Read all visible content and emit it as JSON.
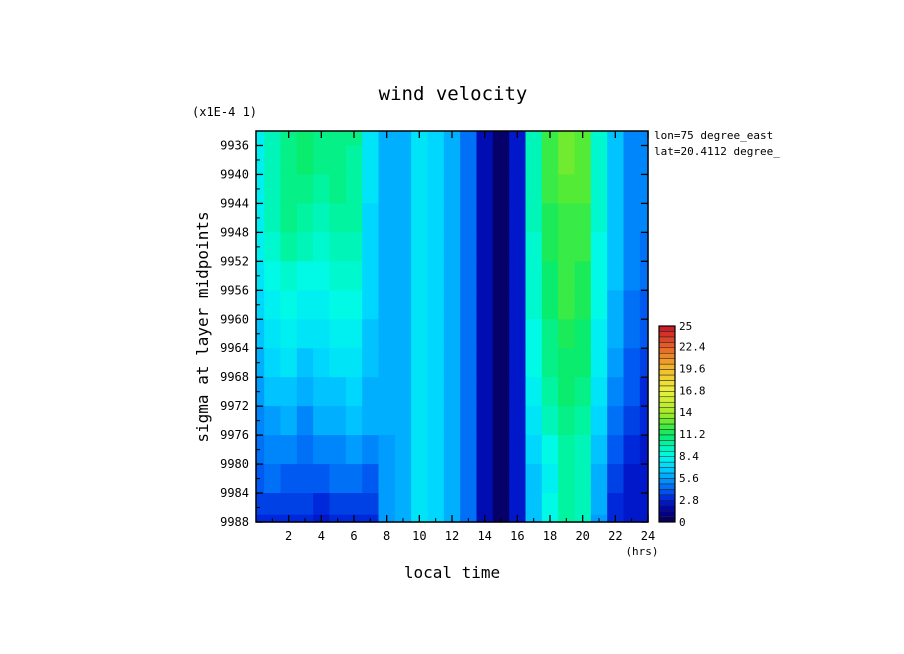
{
  "chart_data": {
    "type": "heatmap",
    "title": "wind velocity",
    "xlabel": "local time",
    "x_unit": "(hrs)",
    "ylabel": "sigma at layer midpoints",
    "y_multiplier": "(x1E-4 1)",
    "annotations": [
      "lon=75 degree_east",
      "lat=20.4112 degree_"
    ],
    "xlim": [
      0,
      24
    ],
    "ylim": [
      9934,
      9988
    ],
    "y_inverted": true,
    "x_ticks": [
      2,
      4,
      6,
      8,
      10,
      12,
      14,
      16,
      18,
      20,
      22,
      24
    ],
    "x_tick_labels": [
      "2",
      "4",
      "6",
      "8",
      "10",
      "12",
      "14",
      "16",
      "18",
      "20",
      "22",
      "24"
    ],
    "y_ticks": [
      9936,
      9940,
      9944,
      9948,
      9952,
      9956,
      9960,
      9964,
      9968,
      9972,
      9976,
      9980,
      9984,
      9988
    ],
    "y_tick_labels": [
      "9936",
      "9940",
      "9944",
      "9948",
      "9952",
      "9956",
      "9960",
      "9964",
      "9968",
      "9972",
      "9976",
      "9980",
      "9984",
      "9988"
    ],
    "colorbar": {
      "min": 0,
      "max": 25,
      "labels": [
        "25",
        "22.4",
        "19.6",
        "16.8",
        "14",
        "11.2",
        "8.4",
        "5.6",
        "2.8",
        "0"
      ],
      "label_values": [
        25,
        22.4,
        19.6,
        16.8,
        14,
        11.2,
        8.4,
        5.6,
        2.8,
        0
      ]
    },
    "grid_x": [
      0,
      1,
      2,
      3,
      4,
      5,
      6,
      7,
      8,
      9,
      10,
      11,
      12,
      13,
      14,
      15,
      16,
      17,
      18,
      19,
      20,
      21,
      22,
      23,
      24
    ],
    "grid_y": [
      9934,
      9938,
      9942,
      9946,
      9950,
      9954,
      9958,
      9962,
      9966,
      9970,
      9974,
      9978,
      9982,
      9986,
      9988
    ],
    "values": [
      [
        8.0,
        9.5,
        10.5,
        11.0,
        10.5,
        10.5,
        10.5,
        7.5,
        6.0,
        6.0,
        7.5,
        7.0,
        6.0,
        4.5,
        2.0,
        0.5,
        2.5,
        9.5,
        12.0,
        13.0,
        12.5,
        9.0,
        6.5,
        5.0,
        5.0
      ],
      [
        8.0,
        9.5,
        10.5,
        11.0,
        10.5,
        10.5,
        10.0,
        7.5,
        6.0,
        6.0,
        7.5,
        7.0,
        6.0,
        4.5,
        2.0,
        0.5,
        2.5,
        9.5,
        12.0,
        13.0,
        12.5,
        9.0,
        6.5,
        5.0,
        5.0
      ],
      [
        8.0,
        9.5,
        10.5,
        10.5,
        10.0,
        10.5,
        10.0,
        7.5,
        6.0,
        6.0,
        7.5,
        7.0,
        6.0,
        4.5,
        2.0,
        0.5,
        2.5,
        9.5,
        12.0,
        12.5,
        12.5,
        9.0,
        6.5,
        5.0,
        5.0
      ],
      [
        8.0,
        9.5,
        10.5,
        10.0,
        9.5,
        10.0,
        10.0,
        7.0,
        6.0,
        6.0,
        7.5,
        7.0,
        6.0,
        4.5,
        2.0,
        0.5,
        2.5,
        9.5,
        11.5,
        12.0,
        12.0,
        9.0,
        6.5,
        5.0,
        5.0
      ],
      [
        8.0,
        9.0,
        10.0,
        9.5,
        9.0,
        9.5,
        9.5,
        7.0,
        6.0,
        6.0,
        7.5,
        7.0,
        6.0,
        4.5,
        2.0,
        0.5,
        2.5,
        9.0,
        11.5,
        12.0,
        12.0,
        8.5,
        6.5,
        5.0,
        4.5
      ],
      [
        7.5,
        8.5,
        9.0,
        8.5,
        8.5,
        9.0,
        9.0,
        7.0,
        6.0,
        6.0,
        7.5,
        7.0,
        6.0,
        4.5,
        2.0,
        0.5,
        2.5,
        9.0,
        11.0,
        12.0,
        11.5,
        8.5,
        6.5,
        5.0,
        4.5
      ],
      [
        7.0,
        8.0,
        8.5,
        8.0,
        8.0,
        8.5,
        8.5,
        7.0,
        6.0,
        6.0,
        7.5,
        7.0,
        6.0,
        4.5,
        2.0,
        0.5,
        2.5,
        9.0,
        11.0,
        12.0,
        11.5,
        8.5,
        6.0,
        4.5,
        4.0
      ],
      [
        6.5,
        7.5,
        8.0,
        7.5,
        7.5,
        8.0,
        8.0,
        6.5,
        6.0,
        6.0,
        7.5,
        7.0,
        6.0,
        4.5,
        2.0,
        0.5,
        2.5,
        8.5,
        10.5,
        11.5,
        11.0,
        8.0,
        6.0,
        4.5,
        4.0
      ],
      [
        6.0,
        7.0,
        7.5,
        6.5,
        7.0,
        7.5,
        7.5,
        6.5,
        6.0,
        6.0,
        7.5,
        7.0,
        6.0,
        4.5,
        2.0,
        0.5,
        2.5,
        8.5,
        10.5,
        11.0,
        11.0,
        8.0,
        5.5,
        4.0,
        3.5
      ],
      [
        5.5,
        6.5,
        6.5,
        6.0,
        6.5,
        6.5,
        7.0,
        6.0,
        6.0,
        6.0,
        7.5,
        7.0,
        6.0,
        4.5,
        2.0,
        0.5,
        2.5,
        8.0,
        10.0,
        11.0,
        10.5,
        7.5,
        5.0,
        4.0,
        3.0
      ],
      [
        5.0,
        5.5,
        6.0,
        5.0,
        6.0,
        6.0,
        6.5,
        6.0,
        6.0,
        6.0,
        7.5,
        7.0,
        6.0,
        4.5,
        2.0,
        0.5,
        2.5,
        7.5,
        9.5,
        10.5,
        10.0,
        7.0,
        4.5,
        3.5,
        3.0
      ],
      [
        4.5,
        5.0,
        5.0,
        4.5,
        5.0,
        5.0,
        5.5,
        5.0,
        5.5,
        6.0,
        7.5,
        7.0,
        6.0,
        4.5,
        2.0,
        0.5,
        2.5,
        7.0,
        8.5,
        10.0,
        9.5,
        6.5,
        4.0,
        3.0,
        2.5
      ],
      [
        4.0,
        4.5,
        4.0,
        4.0,
        4.0,
        4.5,
        4.5,
        4.0,
        5.5,
        6.0,
        7.5,
        7.0,
        6.0,
        4.5,
        2.0,
        0.5,
        2.5,
        6.5,
        8.0,
        10.0,
        9.5,
        6.0,
        3.5,
        2.5,
        2.5
      ],
      [
        3.5,
        3.5,
        3.5,
        3.5,
        3.0,
        3.5,
        3.5,
        3.5,
        5.5,
        6.0,
        7.5,
        7.0,
        6.0,
        4.5,
        2.0,
        0.5,
        2.5,
        6.5,
        8.5,
        10.0,
        9.5,
        6.0,
        3.0,
        2.5,
        2.5
      ],
      [
        3.0,
        3.0,
        3.0,
        3.0,
        2.5,
        3.0,
        3.0,
        3.0,
        5.5,
        6.0,
        7.5,
        7.0,
        6.0,
        4.5,
        2.0,
        0.5,
        2.5,
        6.5,
        8.5,
        10.0,
        9.5,
        5.5,
        3.0,
        2.5,
        2.5
      ]
    ]
  }
}
